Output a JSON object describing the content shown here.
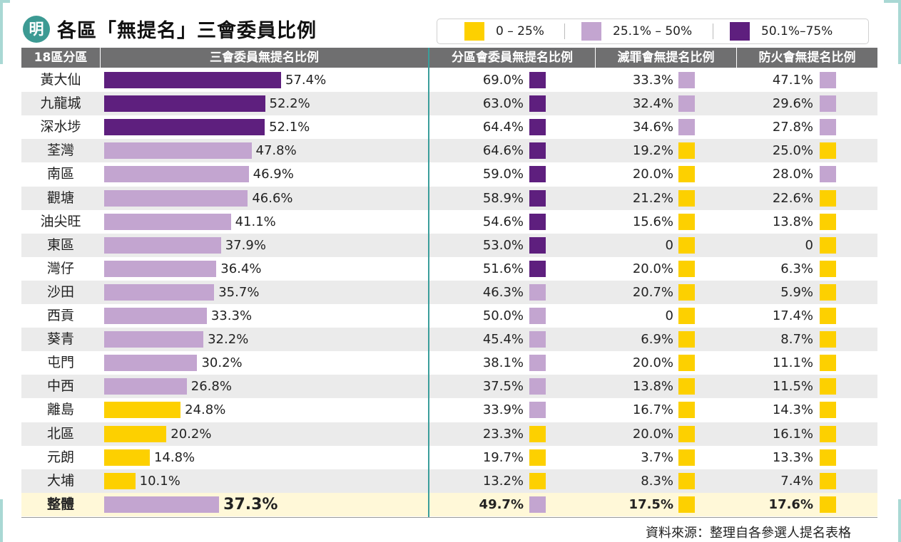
{
  "header": {
    "logo_char": "明",
    "title": "各區「無提名」三會委員比例"
  },
  "legend": [
    {
      "label": "0 – 25%",
      "color": "#fdd000"
    },
    {
      "label": "25.1% – 50%",
      "color": "#c3a5d0"
    },
    {
      "label": "50.1%–75%",
      "color": "#5e1f7e"
    }
  ],
  "columns": {
    "district": "18區分區",
    "three_councils": "三會委員無提名比例",
    "area_committee": "分區會委員無提名比例",
    "fight_crime": "滅罪會無提名比例",
    "fire_safety": "防火會無提名比例"
  },
  "colors": {
    "low": "#fdd000",
    "mid": "#c3a5d0",
    "high": "#5e1f7e",
    "header": "#6f6f70",
    "teal": "#3a9e9b"
  },
  "chart_data": {
    "type": "table",
    "bar_max": 75,
    "rows": [
      {
        "district": "黃大仙",
        "three": 57.4,
        "three_label": "57.4%",
        "area": "69.0%",
        "crime": "33.3%",
        "fire": "47.1%"
      },
      {
        "district": "九龍城",
        "three": 52.2,
        "three_label": "52.2%",
        "area": "63.0%",
        "crime": "32.4%",
        "fire": "29.6%"
      },
      {
        "district": "深水埗",
        "three": 52.1,
        "three_label": "52.1%",
        "area": "64.4%",
        "crime": "34.6%",
        "fire": "27.8%"
      },
      {
        "district": "荃灣",
        "three": 47.8,
        "three_label": "47.8%",
        "area": "64.6%",
        "crime": "19.2%",
        "fire": "25.0%"
      },
      {
        "district": "南區",
        "three": 46.9,
        "three_label": "46.9%",
        "area": "59.0%",
        "crime": "20.0%",
        "fire": "28.0%"
      },
      {
        "district": "觀塘",
        "three": 46.6,
        "three_label": "46.6%",
        "area": "58.9%",
        "crime": "21.2%",
        "fire": "22.6%"
      },
      {
        "district": "油尖旺",
        "three": 41.1,
        "three_label": "41.1%",
        "area": "54.6%",
        "crime": "15.6%",
        "fire": "13.8%"
      },
      {
        "district": "東區",
        "three": 37.9,
        "three_label": "37.9%",
        "area": "53.0%",
        "crime": "0",
        "fire": "0"
      },
      {
        "district": "灣仔",
        "three": 36.4,
        "three_label": "36.4%",
        "area": "51.6%",
        "crime": "20.0%",
        "fire": "6.3%"
      },
      {
        "district": "沙田",
        "three": 35.7,
        "three_label": "35.7%",
        "area": "46.3%",
        "crime": "20.7%",
        "fire": "5.9%"
      },
      {
        "district": "西貢",
        "three": 33.3,
        "three_label": "33.3%",
        "area": "50.0%",
        "crime": "0",
        "fire": "17.4%"
      },
      {
        "district": "葵青",
        "three": 32.2,
        "three_label": "32.2%",
        "area": "45.4%",
        "crime": "6.9%",
        "fire": "8.7%"
      },
      {
        "district": "屯門",
        "three": 30.2,
        "three_label": "30.2%",
        "area": "38.1%",
        "crime": "20.0%",
        "fire": "11.1%"
      },
      {
        "district": "中西",
        "three": 26.8,
        "three_label": "26.8%",
        "area": "37.5%",
        "crime": "13.8%",
        "fire": "11.5%"
      },
      {
        "district": "離島",
        "three": 24.8,
        "three_label": "24.8%",
        "area": "33.9%",
        "crime": "16.7%",
        "fire": "14.3%"
      },
      {
        "district": "北區",
        "three": 20.2,
        "three_label": "20.2%",
        "area": "23.3%",
        "crime": "20.0%",
        "fire": "16.1%"
      },
      {
        "district": "元朗",
        "three": 14.8,
        "three_label": "14.8%",
        "area": "19.7%",
        "crime": "3.7%",
        "fire": "13.3%"
      },
      {
        "district": "大埔",
        "three": 10.1,
        "three_label": "10.1%",
        "area": "13.2%",
        "crime": "8.3%",
        "fire": "7.4%"
      },
      {
        "district": "整體",
        "three": 37.3,
        "three_label": "37.3%",
        "area": "49.7%",
        "crime": "17.5%",
        "fire": "17.6%",
        "total": true
      }
    ]
  },
  "source": "資料來源：整理自各參選人提名表格"
}
